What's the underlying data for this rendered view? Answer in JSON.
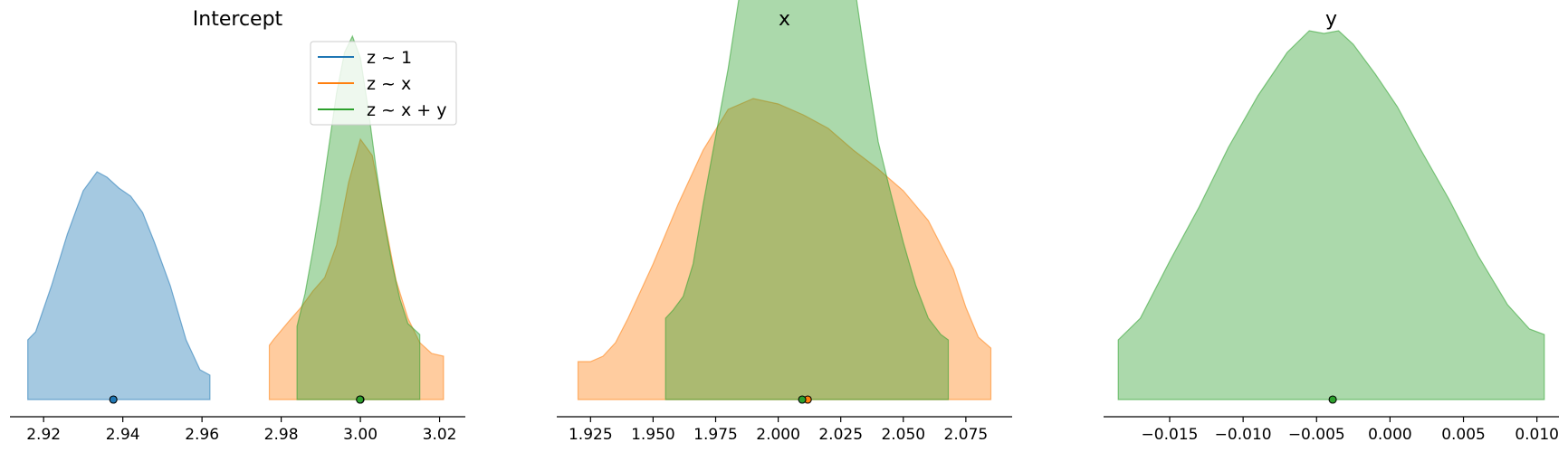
{
  "colors": {
    "z ~ 1": "#1f77b4",
    "z ~ x": "#ff7f0e",
    "z ~ x + y": "#2ca02c"
  },
  "chart_data": {
    "type": "area",
    "legend": {
      "placement": "top-right of first panel",
      "entries": [
        "z ~ 1",
        "z ~ x",
        "z ~ x + y"
      ]
    },
    "panels": [
      {
        "title": "Intercept",
        "xlim": [
          2.9115,
          3.0265
        ],
        "ticks": [
          {
            "value": 2.92,
            "label": "2.92"
          },
          {
            "value": 2.94,
            "label": "2.94"
          },
          {
            "value": 2.96,
            "label": "2.96"
          },
          {
            "value": 2.98,
            "label": "2.98"
          },
          {
            "value": 3.0,
            "label": "3.00"
          },
          {
            "value": 3.02,
            "label": "3.02"
          }
        ],
        "series": [
          {
            "name": "z ~ 1",
            "point_estimate": 2.9376,
            "x": [
              2.916,
              2.918,
              2.922,
              2.926,
              2.93,
              2.9335,
              2.936,
              2.939,
              2.942,
              2.945,
              2.948,
              2.952,
              2.956,
              2.9595,
              2.962
            ],
            "density": [
              0.22,
              0.25,
              0.42,
              0.61,
              0.77,
              0.84,
              0.82,
              0.78,
              0.75,
              0.69,
              0.58,
              0.42,
              0.22,
              0.11,
              0.09
            ]
          },
          {
            "name": "z ~ x",
            "point_estimate": 3.0,
            "x": [
              2.977,
              2.978,
              2.982,
              2.985,
              2.988,
              2.991,
              2.994,
              2.997,
              3.0,
              3.003,
              3.006,
              3.009,
              3.012,
              3.015,
              3.018,
              3.021
            ],
            "density": [
              0.2,
              0.22,
              0.29,
              0.34,
              0.4,
              0.45,
              0.57,
              0.8,
              0.96,
              0.9,
              0.67,
              0.44,
              0.3,
              0.21,
              0.17,
              0.16
            ]
          },
          {
            "name": "z ~ x + y",
            "point_estimate": 2.9999,
            "x": [
              2.984,
              2.986,
              2.988,
              2.99,
              2.992,
              2.994,
              2.996,
              2.998,
              3.0,
              3.002,
              3.004,
              3.006,
              3.008,
              3.01,
              3.012,
              3.015
            ],
            "density": [
              0.27,
              0.39,
              0.55,
              0.73,
              0.93,
              1.13,
              1.28,
              1.34,
              1.26,
              1.07,
              0.85,
              0.66,
              0.5,
              0.37,
              0.28,
              0.24
            ]
          }
        ]
      },
      {
        "title": "x",
        "xlim": [
          1.9115,
          2.0935
        ],
        "ticks": [
          {
            "value": 1.925,
            "label": "1.925"
          },
          {
            "value": 1.95,
            "label": "1.950"
          },
          {
            "value": 1.975,
            "label": "1.975"
          },
          {
            "value": 2.0,
            "label": "2.000"
          },
          {
            "value": 2.025,
            "label": "2.025"
          },
          {
            "value": 2.05,
            "label": "2.050"
          },
          {
            "value": 2.075,
            "label": "2.075"
          }
        ],
        "series": [
          {
            "name": "z ~ x",
            "point_estimate": 2.0118,
            "x": [
              1.92,
              1.925,
              1.93,
              1.935,
              1.94,
              1.945,
              1.95,
              1.96,
              1.97,
              1.98,
              1.99,
              2.0,
              2.01,
              2.02,
              2.03,
              2.04,
              2.05,
              2.06,
              2.07,
              2.075,
              2.08,
              2.085
            ],
            "density": [
              0.14,
              0.14,
              0.16,
              0.21,
              0.3,
              0.4,
              0.5,
              0.72,
              0.92,
              1.07,
              1.11,
              1.09,
              1.05,
              1.0,
              0.92,
              0.85,
              0.77,
              0.66,
              0.48,
              0.34,
              0.23,
              0.19
            ]
          },
          {
            "name": "z ~ x + y",
            "point_estimate": 2.0096,
            "x": [
              1.955,
              1.958,
              1.962,
              1.966,
              1.97,
              1.975,
              1.98,
              1.985,
              1.99,
              1.995,
              2.0,
              2.005,
              2.01,
              2.015,
              2.02,
              2.025,
              2.03,
              2.035,
              2.04,
              2.045,
              2.05,
              2.055,
              2.06,
              2.065,
              2.068
            ],
            "density": [
              0.3,
              0.33,
              0.38,
              0.5,
              0.72,
              0.97,
              1.22,
              1.52,
              1.85,
              2.13,
              2.2,
              2.13,
              2.11,
              2.08,
              1.97,
              1.78,
              1.56,
              1.24,
              0.95,
              0.76,
              0.58,
              0.42,
              0.3,
              0.24,
              0.22
            ]
          }
        ]
      },
      {
        "title": "y",
        "xlim": [
          -0.0195,
          0.0115
        ],
        "ticks": [
          {
            "value": -0.015,
            "label": "−0.015"
          },
          {
            "value": -0.01,
            "label": "−0.010"
          },
          {
            "value": -0.005,
            "label": "−0.005"
          },
          {
            "value": 0.0,
            "label": "0.000"
          },
          {
            "value": 0.005,
            "label": "0.005"
          },
          {
            "value": 0.01,
            "label": "0.010"
          }
        ],
        "series": [
          {
            "name": "z ~ x + y",
            "point_estimate": -0.0039,
            "x": [
              -0.0185,
              -0.017,
              -0.015,
              -0.013,
              -0.011,
              -0.009,
              -0.007,
              -0.0055,
              -0.0045,
              -0.0035,
              -0.0025,
              -0.001,
              0.0005,
              0.002,
              0.004,
              0.006,
              0.008,
              0.0095,
              0.0105
            ],
            "density": [
              0.22,
              0.3,
              0.51,
              0.71,
              0.93,
              1.12,
              1.28,
              1.36,
              1.35,
              1.36,
              1.31,
              1.2,
              1.08,
              0.93,
              0.74,
              0.53,
              0.35,
              0.26,
              0.24
            ]
          }
        ]
      }
    ]
  }
}
